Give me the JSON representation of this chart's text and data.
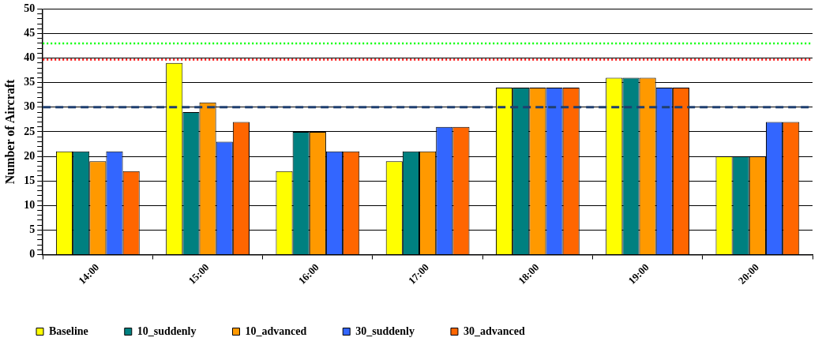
{
  "chart_data": {
    "type": "bar",
    "ylabel": "Number of Aircraft",
    "categories": [
      "14:00",
      "15:00",
      "16:00",
      "17:00",
      "18:00",
      "19:00",
      "20:00"
    ],
    "series": [
      {
        "name": "Baseline",
        "color": "#ffff00",
        "values": [
          21,
          39,
          17,
          19,
          34,
          36,
          20
        ]
      },
      {
        "name": "10_suddenly",
        "color": "#008080",
        "values": [
          21,
          29,
          25,
          21,
          34,
          36,
          20
        ]
      },
      {
        "name": "10_advanced",
        "color": "#ff9900",
        "values": [
          19,
          31,
          25,
          21,
          34,
          36,
          20
        ]
      },
      {
        "name": "30_suddenly",
        "color": "#3366ff",
        "values": [
          21,
          23,
          21,
          26,
          34,
          34,
          27
        ]
      },
      {
        "name": "30_advanced",
        "color": "#ff6600",
        "values": [
          17,
          27,
          21,
          26,
          34,
          34,
          27
        ]
      }
    ],
    "ylim": [
      0,
      50
    ],
    "yticks": [
      0,
      {
        "value": 1,
        "label": null
      },
      {
        "value": 2,
        "label": null
      },
      {
        "value": 3,
        "label": null
      },
      {
        "value": 4,
        "label": null
      },
      5,
      {
        "value": 6,
        "label": null
      },
      {
        "value": 7,
        "label": null
      },
      {
        "value": 8,
        "label": null
      },
      {
        "value": 9,
        "label": null
      },
      10,
      {
        "value": 11,
        "label": null
      },
      {
        "value": 12,
        "label": null
      },
      {
        "value": 13,
        "label": null
      },
      {
        "value": 14,
        "label": null
      },
      15,
      {
        "value": 16,
        "label": null
      },
      {
        "value": 17,
        "label": null
      },
      {
        "value": 18,
        "label": null
      },
      {
        "value": 19,
        "label": null
      },
      20,
      {
        "value": 21,
        "label": null
      },
      {
        "value": 22,
        "label": null
      },
      {
        "value": 23,
        "label": null
      },
      {
        "value": 24,
        "label": null
      },
      25,
      {
        "value": 26,
        "label": null
      },
      {
        "value": 27,
        "label": null
      },
      {
        "value": 28,
        "label": null
      },
      {
        "value": 29,
        "label": null
      },
      30,
      {
        "value": 31,
        "label": null
      },
      {
        "value": 32,
        "label": null
      },
      {
        "value": 33,
        "label": null
      },
      {
        "value": 34,
        "label": null
      },
      35,
      {
        "value": 36,
        "label": null
      },
      {
        "value": 37,
        "label": null
      },
      {
        "value": 38,
        "label": null
      },
      {
        "value": 39,
        "label": null
      },
      40,
      {
        "value": 41,
        "label": null
      },
      {
        "value": 42,
        "label": null
      },
      {
        "value": 43,
        "label": null
      },
      {
        "value": 44,
        "label": null
      },
      45,
      {
        "value": 46,
        "label": null
      },
      {
        "value": 47,
        "label": null
      },
      {
        "value": 48,
        "label": null
      },
      {
        "value": 49,
        "label": null
      },
      50
    ],
    "ref_lines": [
      {
        "axis": "y",
        "value": 43,
        "color": "#00ff00",
        "line_style": "dotted"
      },
      {
        "axis": "y",
        "value": 39.7,
        "color": "#ff0000",
        "line_style": "dotted"
      },
      {
        "axis": "y",
        "value": 30,
        "color": "#1f3f6f",
        "line_style": "dashed"
      }
    ],
    "grid": "y",
    "legend": "bottom"
  }
}
